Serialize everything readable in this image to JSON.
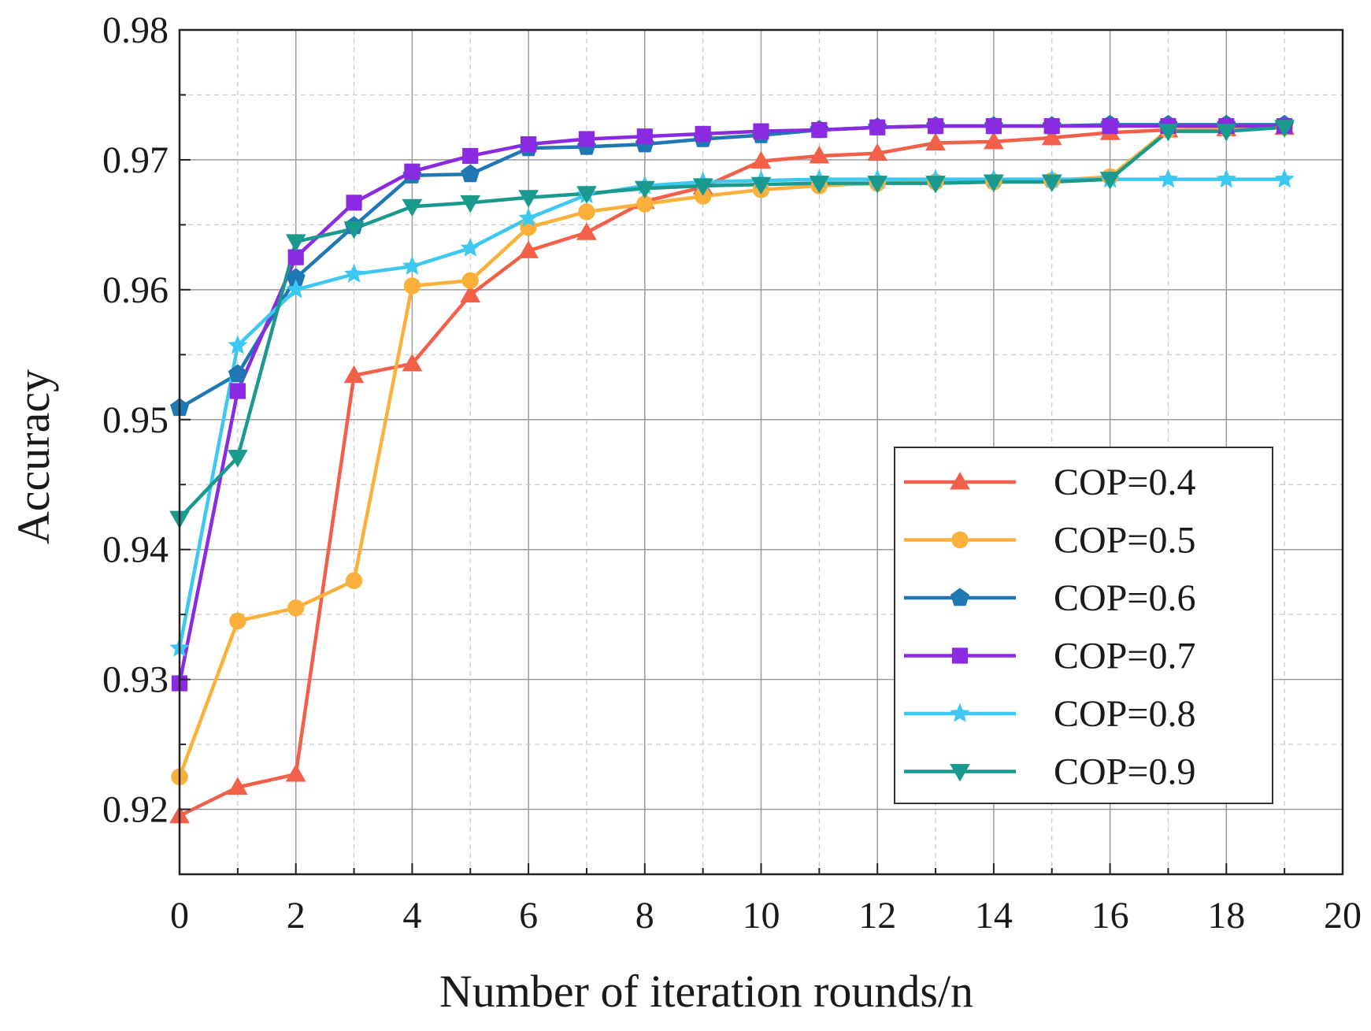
{
  "chart_data": {
    "type": "line",
    "title": "",
    "xlabel": "Number of iteration rounds/n",
    "ylabel": "Accuracy",
    "xlim": [
      0,
      20
    ],
    "ylim": [
      0.915,
      0.98
    ],
    "xticks": [
      0,
      2,
      4,
      6,
      8,
      10,
      12,
      14,
      16,
      18,
      20
    ],
    "yticks": [
      0.92,
      0.93,
      0.94,
      0.95,
      0.96,
      0.97,
      0.98
    ],
    "xtick_labels": [
      "0",
      "2",
      "4",
      "6",
      "8",
      "10",
      "12",
      "14",
      "16",
      "18",
      "20"
    ],
    "ytick_labels": [
      "0.92",
      "0.93",
      "0.94",
      "0.95",
      "0.96",
      "0.97",
      "0.98"
    ],
    "grid": true,
    "legend_position": "lower-right",
    "x": [
      0,
      1,
      2,
      3,
      4,
      5,
      6,
      7,
      8,
      9,
      10,
      11,
      12,
      13,
      14,
      15,
      16,
      17,
      18,
      19
    ],
    "series": [
      {
        "name": "COP=0.4",
        "color": "#f2604a",
        "marker": "triangle-up",
        "values": [
          0.9195,
          0.9217,
          0.9227,
          0.9534,
          0.9543,
          0.9596,
          0.963,
          0.9644,
          0.9668,
          0.9679,
          0.9699,
          0.9703,
          0.9705,
          0.9713,
          0.9714,
          0.9717,
          0.9721,
          0.9723,
          0.9724,
          0.9725
        ]
      },
      {
        "name": "COP=0.5",
        "color": "#fbb03b",
        "marker": "circle",
        "values": [
          0.9225,
          0.9345,
          0.9355,
          0.9376,
          0.9603,
          0.9607,
          0.9648,
          0.966,
          0.9666,
          0.9672,
          0.9677,
          0.968,
          0.9682,
          0.9683,
          0.9683,
          0.9684,
          0.9687,
          0.9723,
          0.9724,
          0.9725
        ]
      },
      {
        "name": "COP=0.6",
        "color": "#1f77b4",
        "marker": "pentagon",
        "values": [
          0.9509,
          0.9535,
          0.9609,
          0.9649,
          0.9688,
          0.9689,
          0.9709,
          0.971,
          0.9712,
          0.9716,
          0.9719,
          0.9723,
          0.9725,
          0.9726,
          0.9726,
          0.9726,
          0.9727,
          0.9727,
          0.9727,
          0.9727
        ]
      },
      {
        "name": "COP=0.7",
        "color": "#8a2be2",
        "marker": "square",
        "values": [
          0.9297,
          0.9522,
          0.9625,
          0.9667,
          0.9691,
          0.9703,
          0.9712,
          0.9716,
          0.9718,
          0.972,
          0.9722,
          0.9723,
          0.9725,
          0.9726,
          0.9726,
          0.9726,
          0.9726,
          0.9726,
          0.9726,
          0.9726
        ]
      },
      {
        "name": "COP=0.8",
        "color": "#3cc8f0",
        "marker": "star",
        "values": [
          0.9324,
          0.9557,
          0.96,
          0.9612,
          0.9618,
          0.9632,
          0.9655,
          0.9673,
          0.968,
          0.9683,
          0.9684,
          0.9685,
          0.9685,
          0.9685,
          0.9685,
          0.9685,
          0.9685,
          0.9685,
          0.9685,
          0.9685
        ]
      },
      {
        "name": "COP=0.9",
        "color": "#1a9a8e",
        "marker": "triangle-down",
        "values": [
          0.9424,
          0.9471,
          0.9637,
          0.9647,
          0.9664,
          0.9667,
          0.9671,
          0.9674,
          0.9678,
          0.968,
          0.9681,
          0.9682,
          0.9682,
          0.9682,
          0.9683,
          0.9683,
          0.9685,
          0.9722,
          0.9722,
          0.9725
        ]
      }
    ]
  }
}
